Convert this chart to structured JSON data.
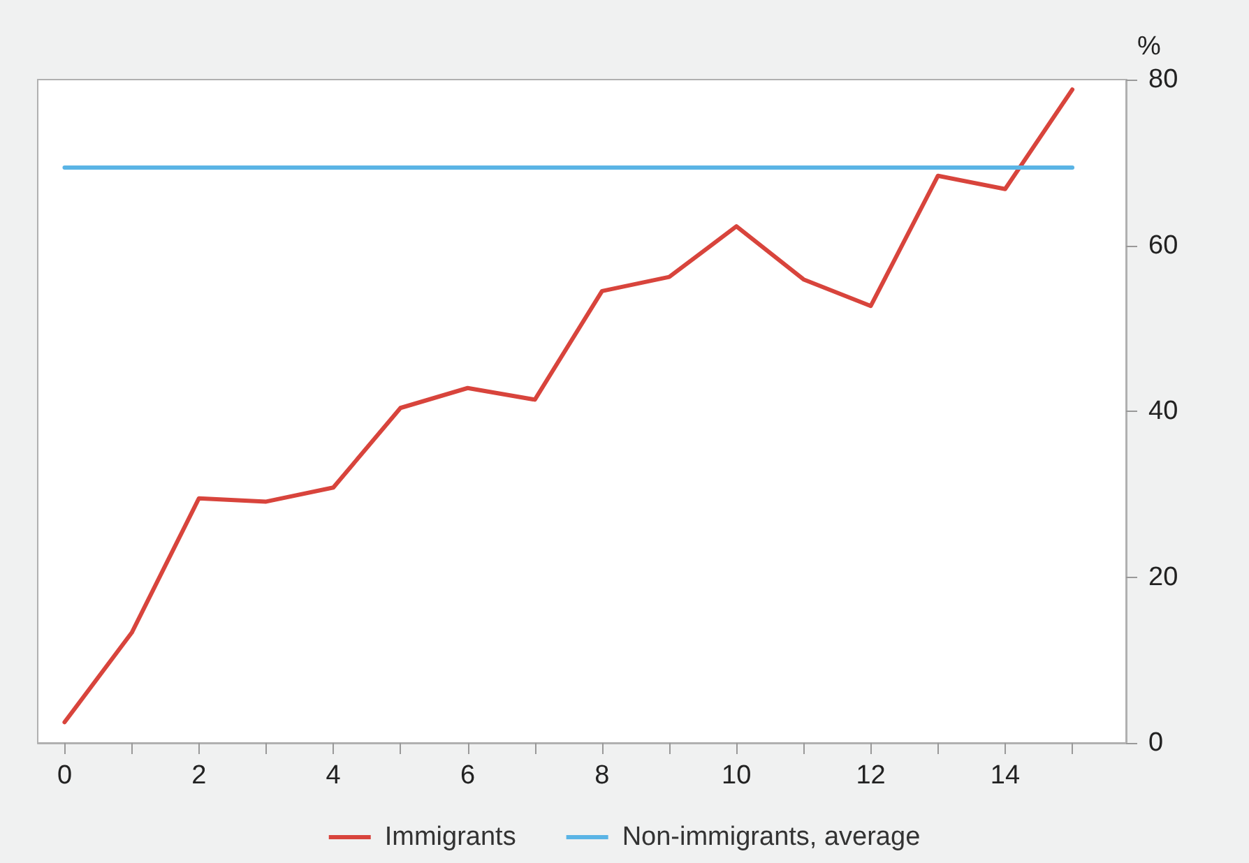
{
  "chart_data": {
    "type": "line",
    "ylabel": "%",
    "series": [
      {
        "name": "Immigrants",
        "color": "#d8443c",
        "x": [
          0,
          1,
          2,
          3,
          4,
          5,
          6,
          7,
          8,
          9,
          10,
          11,
          12,
          13,
          14,
          15
        ],
        "values": [
          2.5,
          13.3,
          29.5,
          29.1,
          30.8,
          40.4,
          42.8,
          41.4,
          54.5,
          56.2,
          62.3,
          55.9,
          52.7,
          68.4,
          66.8,
          78.8
        ]
      },
      {
        "name": "Non-immigrants, average",
        "color": "#5ab4e5",
        "x": [
          0,
          15
        ],
        "values": [
          69.4,
          69.4
        ]
      }
    ],
    "xlim": [
      -0.4,
      15.8
    ],
    "xticks": [
      0,
      {
        "value": 1,
        "label": null
      },
      2,
      {
        "value": 3,
        "label": null
      },
      4,
      {
        "value": 5,
        "label": null
      },
      6,
      {
        "value": 7,
        "label": null
      },
      8,
      {
        "value": 9,
        "label": null
      },
      10,
      {
        "value": 11,
        "label": null
      },
      12,
      {
        "value": 13,
        "label": null
      },
      14,
      {
        "value": 15,
        "label": null
      }
    ],
    "ylim": [
      0,
      80
    ],
    "yticks": [
      0,
      20,
      40,
      60,
      80
    ],
    "grid": false,
    "legend": "bottom",
    "marker": "none",
    "line_style": "solid"
  }
}
